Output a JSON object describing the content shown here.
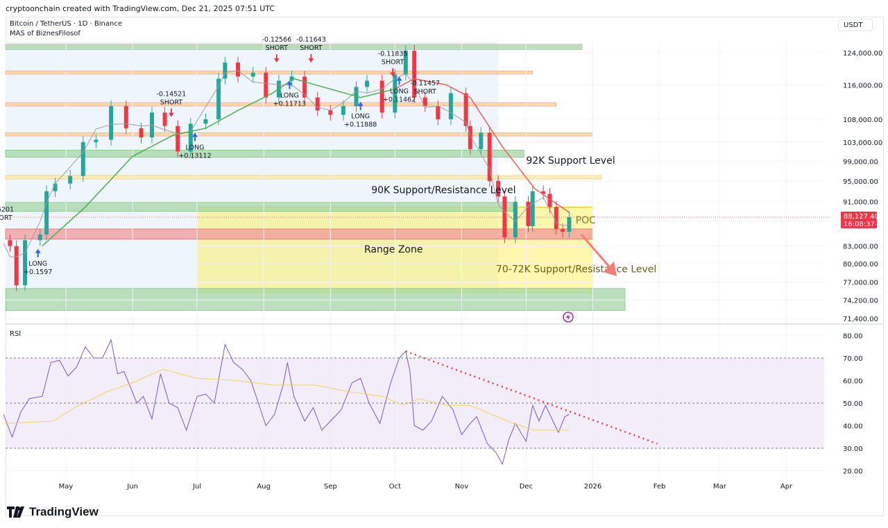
{
  "header": {
    "credit": "cryptoonchain created with TradingView.com, Dec 21, 2025 07:51 UTC",
    "symbol_line": "Bitcoin / TetherUS · 1D · Binance",
    "indicator_line": "MAS of BiznesFilosof",
    "currency": "USDT"
  },
  "branding": {
    "logo_text": "TradingView"
  },
  "colors": {
    "up": "#26a69a",
    "down": "#f23645",
    "ma_up": "#4caf50",
    "ma_down": "#f05a5a",
    "ma_fast": "#9e9e9e",
    "rsi": "#7e57c2",
    "rsi_ma": "#f5d35b",
    "trendline": "#f23645",
    "last_price": "#f23645"
  },
  "chart_data": [
    {
      "type": "candlestick",
      "title": "Bitcoin / TetherUS · 1D · Binance",
      "y_scale": "log",
      "ylim": [
        70500,
        127000
      ],
      "y_ticks": [
        "124,000.00",
        "116,000.00",
        "108,000.00",
        "103,000.00",
        "99,000.00",
        "95,000.00",
        "91,000.00",
        "83,000.00",
        "80,000.00",
        "77,000.00",
        "74,200.00",
        "71,400.00"
      ],
      "y_tick_values": [
        124000,
        116000,
        108000,
        103000,
        99000,
        95000,
        91000,
        83000,
        80000,
        77000,
        74200,
        71400
      ],
      "x_ticks": [
        "May",
        "Jun",
        "Jul",
        "Aug",
        "Sep",
        "Oct",
        "Nov",
        "Dec",
        "2026",
        "Feb",
        "Mar",
        "Apr"
      ],
      "x_tick_dates": [
        "2025-05-01",
        "2025-06-01",
        "2025-07-01",
        "2025-08-01",
        "2025-09-01",
        "2025-10-01",
        "2025-11-01",
        "2025-12-01",
        "2026-01-01",
        "2026-02-01",
        "2026-03-01",
        "2026-04-01"
      ],
      "last_price": {
        "value": "88,127.40",
        "countdown": "16:08:37",
        "price": 88127.4
      },
      "closes": [
        [
          "2025-04-02",
          84000
        ],
        [
          "2025-04-05",
          83000
        ],
        [
          "2025-04-08",
          76500
        ],
        [
          "2025-04-12",
          84000
        ],
        [
          "2025-04-19",
          85000
        ],
        [
          "2025-04-22",
          93000
        ],
        [
          "2025-04-26",
          94500
        ],
        [
          "2025-05-03",
          96000
        ],
        [
          "2025-05-09",
          103000
        ],
        [
          "2025-05-15",
          103500
        ],
        [
          "2025-05-22",
          111000
        ],
        [
          "2025-05-29",
          106000
        ],
        [
          "2025-06-05",
          104000
        ],
        [
          "2025-06-10",
          109500
        ],
        [
          "2025-06-16",
          106500
        ],
        [
          "2025-06-22",
          101000
        ],
        [
          "2025-06-28",
          107000
        ],
        [
          "2025-07-05",
          108000
        ],
        [
          "2025-07-11",
          117500
        ],
        [
          "2025-07-14",
          121500
        ],
        [
          "2025-07-20",
          118000
        ],
        [
          "2025-07-27",
          119000
        ],
        [
          "2025-08-02",
          113000
        ],
        [
          "2025-08-08",
          117000
        ],
        [
          "2025-08-14",
          118000
        ],
        [
          "2025-08-20",
          113000
        ],
        [
          "2025-08-26",
          110000
        ],
        [
          "2025-09-01",
          109000
        ],
        [
          "2025-09-07",
          111000
        ],
        [
          "2025-09-13",
          115500
        ],
        [
          "2025-09-18",
          117000
        ],
        [
          "2025-09-25",
          109500
        ],
        [
          "2025-10-01",
          118500
        ],
        [
          "2025-10-06",
          124500
        ],
        [
          "2025-10-10",
          113000
        ],
        [
          "2025-10-15",
          111000
        ],
        [
          "2025-10-21",
          108000
        ],
        [
          "2025-10-27",
          114000
        ],
        [
          "2025-11-03",
          106500
        ],
        [
          "2025-11-05",
          101500
        ],
        [
          "2025-11-10",
          105000
        ],
        [
          "2025-11-14",
          95000
        ],
        [
          "2025-11-18",
          92000
        ],
        [
          "2025-11-21",
          84500
        ],
        [
          "2025-11-26",
          91000
        ],
        [
          "2025-12-02",
          86500
        ],
        [
          "2025-12-04",
          93000
        ],
        [
          "2025-12-09",
          92500
        ],
        [
          "2025-12-12",
          90000
        ],
        [
          "2025-12-15",
          86000
        ],
        [
          "2025-12-18",
          85500
        ],
        [
          "2025-12-21",
          88127
        ]
      ],
      "ma_slow": [
        [
          "2025-04-20",
          83000
        ],
        [
          "2025-05-10",
          90000
        ],
        [
          "2025-06-01",
          100000
        ],
        [
          "2025-06-20",
          104500
        ],
        [
          "2025-07-05",
          106000
        ],
        [
          "2025-07-20",
          110000
        ],
        [
          "2025-08-05",
          114000
        ],
        [
          "2025-08-15",
          117500
        ],
        [
          "2025-08-25",
          116000
        ],
        [
          "2025-09-15",
          113000
        ],
        [
          "2025-10-01",
          115000
        ],
        [
          "2025-10-10",
          117500
        ],
        [
          "2025-10-25",
          116000
        ],
        [
          "2025-11-05",
          113000
        ],
        [
          "2025-11-20",
          102000
        ],
        [
          "2025-12-05",
          93500
        ],
        [
          "2025-12-21",
          89000
        ]
      ],
      "levels": [
        {
          "kind": "green-line",
          "from": 124800,
          "to": 126200,
          "end": "2025-12-27"
        },
        {
          "kind": "orange-line",
          "from": 118600,
          "to": 119400,
          "end": "2025-12-04"
        },
        {
          "kind": "orange-line",
          "from": 111000,
          "to": 111800,
          "end": "2025-12-15"
        },
        {
          "kind": "orange-line",
          "from": 104300,
          "to": 105000,
          "end": "2026-01-01"
        },
        {
          "kind": "green-zone",
          "from": 99800,
          "to": 101300,
          "end": "2025-11-30"
        },
        {
          "kind": "yellow-line",
          "from": 95400,
          "to": 96100,
          "end": "2026-01-05"
        },
        {
          "kind": "green-zone",
          "from": 89200,
          "to": 90900,
          "end": "2025-11-25"
        },
        {
          "kind": "red-zone",
          "from": 84200,
          "to": 86000,
          "end": "2026-01-01"
        },
        {
          "kind": "green-zone",
          "from": 72600,
          "to": 76000,
          "end": "2026-01-16"
        }
      ],
      "range_zone": {
        "from": 75400,
        "to": 90000,
        "start": "2025-07-01",
        "end": "2026-01-01",
        "label": "Range Zone"
      },
      "annotations": [
        {
          "text": "92K Support Level",
          "date": "2025-12-01",
          "price": 98500,
          "color": "#131722"
        },
        {
          "text": "90K Support/Resistance Level",
          "date": "2025-09-20",
          "price": 92600,
          "color": "#131722"
        },
        {
          "text": "70-72K Support/Resistance Level",
          "date": "2025-11-17",
          "price": 78600,
          "color": "#6b5e1a"
        },
        {
          "text": "POC",
          "date": "2025-12-24",
          "price": 87000,
          "color": "#8a7a2a"
        }
      ],
      "signals": [
        {
          "type": "long",
          "date": "2025-04-18",
          "price": 82500,
          "text": [
            "LONG",
            "+0.1597"
          ]
        },
        {
          "type": "short",
          "date": "2025-06-19",
          "price": 108500,
          "text": [
            "-0.14521",
            "SHORT"
          ]
        },
        {
          "type": "long",
          "date": "2025-06-30",
          "price": 105000,
          "text": [
            "LONG",
            "+0.13112"
          ]
        },
        {
          "type": "short",
          "date": "2025-08-07",
          "price": 121500,
          "text": [
            "-0.12566",
            "SHORT"
          ]
        },
        {
          "type": "long",
          "date": "2025-08-13",
          "price": 117000,
          "text": [
            "LONG",
            "+0.11713"
          ]
        },
        {
          "type": "short",
          "date": "2025-08-23",
          "price": 121500,
          "text": [
            "-0.11643",
            "SHORT"
          ]
        },
        {
          "type": "long",
          "date": "2025-09-15",
          "price": 112000,
          "text": [
            "LONG",
            "+0.11888"
          ]
        },
        {
          "type": "short",
          "date": "2025-09-30",
          "price": 118000,
          "text": [
            "-0.11835",
            "SHORT"
          ]
        },
        {
          "type": "long",
          "date": "2025-10-03",
          "price": 118000,
          "text": [
            "LONG",
            "+0.11462"
          ]
        },
        {
          "type": "short",
          "date": "2025-10-15",
          "price": 111000,
          "text": [
            "-0.11457",
            "SHORT"
          ]
        }
      ],
      "cut_labels": [
        "6201",
        "ORT"
      ]
    },
    {
      "type": "line",
      "title": "RSI",
      "ylim": [
        17,
        84
      ],
      "y_ticks": [
        "80.00",
        "70.00",
        "60.00",
        "50.00",
        "40.00",
        "30.00",
        "20.00"
      ],
      "y_tick_values": [
        80,
        70,
        60,
        50,
        40,
        30,
        20
      ],
      "bands": [
        30,
        50,
        70
      ],
      "series": [
        {
          "key": "rsi",
          "values": [
            [
              "2025-04-02",
              45
            ],
            [
              "2025-04-06",
              35
            ],
            [
              "2025-04-10",
              46
            ],
            [
              "2025-04-14",
              52
            ],
            [
              "2025-04-20",
              53
            ],
            [
              "2025-04-24",
              68
            ],
            [
              "2025-04-28",
              69
            ],
            [
              "2025-05-02",
              62
            ],
            [
              "2025-05-06",
              66
            ],
            [
              "2025-05-10",
              75
            ],
            [
              "2025-05-14",
              70
            ],
            [
              "2025-05-18",
              70
            ],
            [
              "2025-05-22",
              78
            ],
            [
              "2025-05-25",
              63
            ],
            [
              "2025-05-28",
              64
            ],
            [
              "2025-06-03",
              50
            ],
            [
              "2025-06-06",
              53
            ],
            [
              "2025-06-10",
              43
            ],
            [
              "2025-06-14",
              63
            ],
            [
              "2025-06-18",
              50
            ],
            [
              "2025-06-22",
              48
            ],
            [
              "2025-06-26",
              38
            ],
            [
              "2025-07-01",
              53
            ],
            [
              "2025-07-05",
              54
            ],
            [
              "2025-07-09",
              50
            ],
            [
              "2025-07-14",
              76
            ],
            [
              "2025-07-18",
              68
            ],
            [
              "2025-07-22",
              65
            ],
            [
              "2025-07-26",
              60
            ],
            [
              "2025-08-02",
              40
            ],
            [
              "2025-08-06",
              45
            ],
            [
              "2025-08-10",
              58
            ],
            [
              "2025-08-12",
              68
            ],
            [
              "2025-08-15",
              53
            ],
            [
              "2025-08-20",
              42
            ],
            [
              "2025-08-24",
              48
            ],
            [
              "2025-08-28",
              38
            ],
            [
              "2025-09-02",
              43
            ],
            [
              "2025-09-06",
              47
            ],
            [
              "2025-09-11",
              59
            ],
            [
              "2025-09-15",
              61
            ],
            [
              "2025-09-19",
              50
            ],
            [
              "2025-09-24",
              41
            ],
            [
              "2025-09-29",
              59
            ],
            [
              "2025-10-03",
              70
            ],
            [
              "2025-10-06",
              73
            ],
            [
              "2025-10-08",
              64
            ],
            [
              "2025-10-10",
              40
            ],
            [
              "2025-10-14",
              38
            ],
            [
              "2025-10-18",
              42
            ],
            [
              "2025-10-23",
              53
            ],
            [
              "2025-10-28",
              47
            ],
            [
              "2025-11-01",
              36
            ],
            [
              "2025-11-05",
              41
            ],
            [
              "2025-11-08",
              44
            ],
            [
              "2025-11-13",
              32
            ],
            [
              "2025-11-17",
              28
            ],
            [
              "2025-11-20",
              23
            ],
            [
              "2025-11-23",
              34
            ],
            [
              "2025-11-26",
              41
            ],
            [
              "2025-12-01",
              33
            ],
            [
              "2025-12-04",
              49
            ],
            [
              "2025-12-07",
              42
            ],
            [
              "2025-12-10",
              49
            ],
            [
              "2025-12-13",
              43
            ],
            [
              "2025-12-16",
              37
            ],
            [
              "2025-12-19",
              44
            ],
            [
              "2025-12-21",
              45
            ]
          ]
        },
        {
          "key": "rsi_ma",
          "values": [
            [
              "2025-04-02",
              41
            ],
            [
              "2025-04-25",
              42
            ],
            [
              "2025-05-05",
              48
            ],
            [
              "2025-05-20",
              55
            ],
            [
              "2025-06-01",
              59
            ],
            [
              "2025-06-15",
              65
            ],
            [
              "2025-07-01",
              61
            ],
            [
              "2025-07-20",
              60
            ],
            [
              "2025-08-05",
              58
            ],
            [
              "2025-08-25",
              58
            ],
            [
              "2025-09-10",
              55
            ],
            [
              "2025-09-25",
              53
            ],
            [
              "2025-10-05",
              49
            ],
            [
              "2025-10-12",
              52
            ],
            [
              "2025-10-25",
              49
            ],
            [
              "2025-11-05",
              49
            ],
            [
              "2025-11-15",
              45
            ],
            [
              "2025-11-25",
              41
            ],
            [
              "2025-12-05",
              38
            ],
            [
              "2025-12-21",
              38
            ]
          ]
        }
      ],
      "trendline": [
        [
          "2025-10-06",
          73
        ],
        [
          "2026-01-31",
          32
        ]
      ]
    }
  ]
}
